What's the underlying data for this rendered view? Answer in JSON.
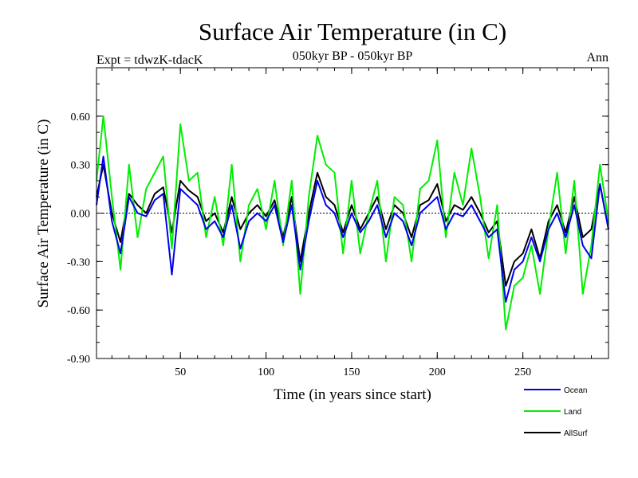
{
  "chart_data": {
    "type": "line",
    "title": "Surface Air Temperature (in C)",
    "subtitle_left": "Expt = tdwzK-tdacK",
    "subtitle_center": "050kyr BP - 050kyr BP",
    "subtitle_right": "Ann",
    "xlabel": "Time (in years since start)",
    "ylabel": "Surface Air Temperature (in C)",
    "xlim": [
      1,
      300
    ],
    "ylim": [
      -0.9,
      0.9
    ],
    "xticks": [
      50,
      100,
      150,
      200,
      250
    ],
    "yticks": [
      -0.9,
      -0.6,
      -0.3,
      0.0,
      0.3,
      0.6
    ],
    "ytick_labels": [
      "-0.90",
      "-0.60",
      "-0.30",
      "0.00",
      "0.30",
      "0.60"
    ],
    "zero_line": true,
    "grid": false,
    "legend_position": "bottom-right, below plot",
    "series": [
      {
        "name": "AllSurf",
        "color": "#000000",
        "x": [
          1,
          5,
          10,
          15,
          20,
          25,
          30,
          35,
          40,
          45,
          50,
          55,
          60,
          65,
          70,
          75,
          80,
          85,
          90,
          95,
          100,
          105,
          110,
          115,
          120,
          125,
          130,
          135,
          140,
          145,
          150,
          155,
          160,
          165,
          170,
          175,
          180,
          185,
          190,
          195,
          200,
          205,
          210,
          215,
          220,
          225,
          230,
          235,
          240,
          245,
          250,
          255,
          260,
          265,
          270,
          275,
          280,
          285,
          290,
          295,
          300
        ],
        "values": [
          0.1,
          0.3,
          0.0,
          -0.18,
          0.12,
          0.05,
          0.0,
          0.12,
          0.16,
          -0.12,
          0.2,
          0.14,
          0.1,
          -0.05,
          0.0,
          -0.12,
          0.1,
          -0.1,
          0.0,
          0.05,
          -0.02,
          0.08,
          -0.15,
          0.1,
          -0.3,
          0.0,
          0.25,
          0.1,
          0.05,
          -0.12,
          0.05,
          -0.1,
          0.0,
          0.1,
          -0.1,
          0.05,
          0.0,
          -0.15,
          0.05,
          0.08,
          0.18,
          -0.05,
          0.05,
          0.02,
          0.1,
          0.0,
          -0.12,
          -0.05,
          -0.45,
          -0.3,
          -0.25,
          -0.1,
          -0.28,
          -0.05,
          0.05,
          -0.12,
          0.1,
          -0.15,
          -0.1,
          0.18,
          -0.1
        ]
      },
      {
        "name": "Land",
        "color": "#00ee00",
        "x": [
          1,
          5,
          10,
          15,
          20,
          25,
          30,
          35,
          40,
          45,
          50,
          55,
          60,
          65,
          70,
          75,
          80,
          85,
          90,
          95,
          100,
          105,
          110,
          115,
          120,
          125,
          130,
          135,
          140,
          145,
          150,
          155,
          160,
          165,
          170,
          175,
          180,
          185,
          190,
          195,
          200,
          205,
          210,
          215,
          220,
          225,
          230,
          235,
          240,
          245,
          250,
          255,
          260,
          265,
          270,
          275,
          280,
          285,
          290,
          295,
          300
        ],
        "values": [
          0.2,
          0.6,
          0.1,
          -0.35,
          0.3,
          -0.15,
          0.15,
          0.25,
          0.35,
          -0.22,
          0.55,
          0.2,
          0.25,
          -0.15,
          0.1,
          -0.2,
          0.3,
          -0.3,
          0.05,
          0.15,
          -0.1,
          0.2,
          -0.2,
          0.2,
          -0.5,
          0.1,
          0.48,
          0.3,
          0.25,
          -0.25,
          0.2,
          -0.25,
          0.0,
          0.2,
          -0.3,
          0.1,
          0.05,
          -0.3,
          0.15,
          0.2,
          0.45,
          -0.15,
          0.25,
          0.05,
          0.4,
          0.1,
          -0.28,
          0.05,
          -0.72,
          -0.45,
          -0.4,
          -0.2,
          -0.5,
          -0.1,
          0.25,
          -0.25,
          0.2,
          -0.5,
          -0.2,
          0.3,
          -0.05
        ]
      },
      {
        "name": "Ocean",
        "color": "#0000ee",
        "x": [
          1,
          5,
          10,
          15,
          20,
          25,
          30,
          35,
          40,
          45,
          50,
          55,
          60,
          65,
          70,
          75,
          80,
          85,
          90,
          95,
          100,
          105,
          110,
          115,
          120,
          125,
          130,
          135,
          140,
          145,
          150,
          155,
          160,
          165,
          170,
          175,
          180,
          185,
          190,
          195,
          200,
          205,
          210,
          215,
          220,
          225,
          230,
          235,
          240,
          245,
          250,
          255,
          260,
          265,
          270,
          275,
          280,
          285,
          290,
          295,
          300
        ],
        "values": [
          0.05,
          0.35,
          -0.05,
          -0.25,
          0.1,
          0.0,
          -0.02,
          0.08,
          0.12,
          -0.38,
          0.15,
          0.1,
          0.05,
          -0.1,
          -0.05,
          -0.15,
          0.05,
          -0.22,
          -0.05,
          0.0,
          -0.05,
          0.05,
          -0.18,
          0.05,
          -0.35,
          -0.05,
          0.2,
          0.05,
          0.0,
          -0.15,
          0.0,
          -0.12,
          -0.05,
          0.05,
          -0.15,
          0.0,
          -0.05,
          -0.2,
          0.0,
          0.05,
          0.1,
          -0.1,
          0.0,
          -0.02,
          0.05,
          -0.05,
          -0.15,
          -0.1,
          -0.55,
          -0.35,
          -0.3,
          -0.15,
          -0.3,
          -0.1,
          0.0,
          -0.15,
          0.05,
          -0.2,
          -0.28,
          0.18,
          -0.1
        ]
      }
    ],
    "legend": [
      {
        "label": "Ocean",
        "color": "#0000ee"
      },
      {
        "label": "Land",
        "color": "#00ee00"
      },
      {
        "label": "AllSurf",
        "color": "#000000"
      }
    ]
  }
}
